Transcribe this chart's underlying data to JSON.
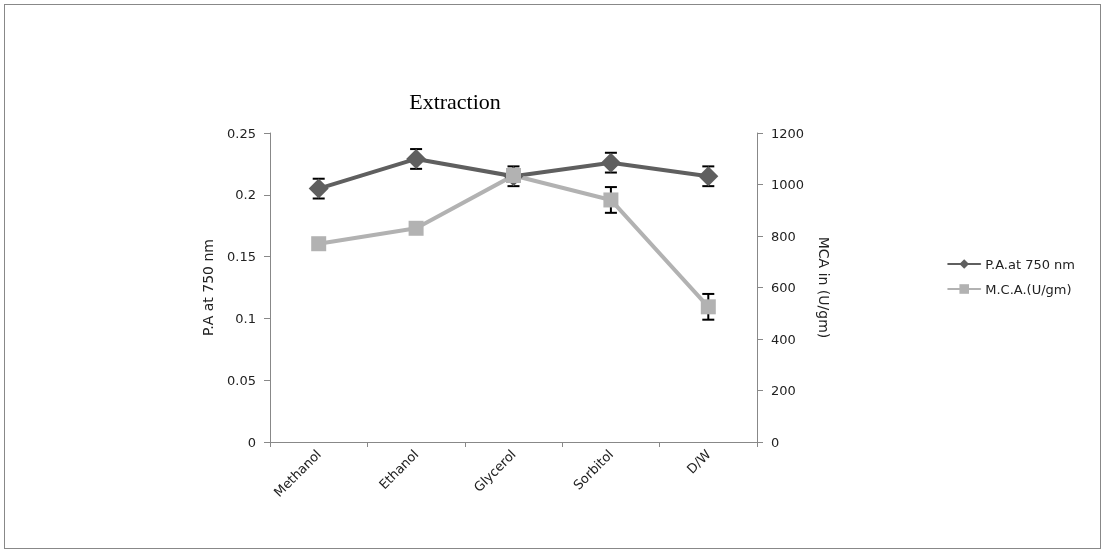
{
  "chart_data": {
    "type": "line",
    "title": "Extraction",
    "ylabel": "P.A at 750 nm",
    "y2label": "MCA in (U/gm)",
    "categories": [
      "Methanol",
      "Ethanol",
      "Glycerol",
      "Sorbitol",
      "D/W"
    ],
    "series": [
      {
        "name": "P.A.at 750 nm",
        "color": "#5f5f5f",
        "marker": "diamond",
        "values": [
          0.205,
          0.229,
          0.215,
          0.226,
          0.215
        ],
        "errors": [
          0.008,
          0.008,
          0.008,
          0.008,
          0.008
        ]
      },
      {
        "name": "M.C.A.(U/gm)",
        "color": "#b2b2b2",
        "marker": "square",
        "axis": "y2",
        "values": [
          770,
          830,
          1035,
          940,
          525
        ],
        "errors": [
          null,
          null,
          null,
          50,
          50
        ]
      }
    ],
    "ylim": [
      0,
      0.25
    ],
    "yticks": [
      0,
      0.05,
      0.1,
      0.15,
      0.2,
      0.25
    ],
    "y2lim": [
      0,
      1200
    ],
    "y2ticks": [
      0,
      200,
      400,
      600,
      800,
      1000,
      1200
    ],
    "grid": false,
    "legend": "right",
    "line_style": "solid"
  }
}
